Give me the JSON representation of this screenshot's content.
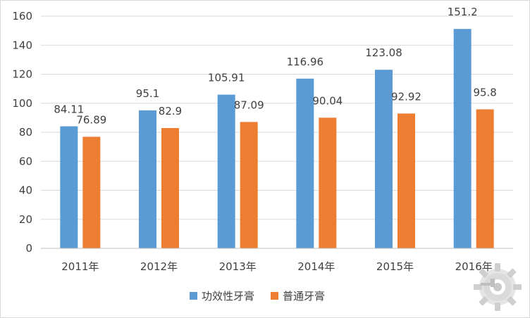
{
  "chart_data": {
    "type": "bar",
    "categories": [
      "2011年",
      "2012年",
      "2013年",
      "2014年",
      "2015年",
      "2016年"
    ],
    "series": [
      {
        "name": "功效性牙膏",
        "color": "#5b9bd5",
        "values": [
          84.11,
          95.1,
          105.91,
          116.96,
          123.08,
          151.2
        ],
        "labels": [
          "84.11",
          "95.1",
          "105.91",
          "116.96",
          "123.08",
          "151.2"
        ]
      },
      {
        "name": "普通牙膏",
        "color": "#ed7d31",
        "values": [
          76.89,
          82.9,
          87.09,
          90.04,
          92.92,
          95.8
        ],
        "labels": [
          "76.89",
          "82.9",
          "87.09",
          "90.04",
          "92.92",
          "95.8"
        ]
      }
    ],
    "title": "",
    "xlabel": "",
    "ylabel": "",
    "ylim": [
      0,
      160
    ],
    "yticks": [
      "0",
      "20",
      "40",
      "60",
      "80",
      "100",
      "120",
      "140",
      "160"
    ],
    "grid": true,
    "legend_position": "bottom"
  },
  "watermark_icon": "gear-wrench-logo-icon"
}
